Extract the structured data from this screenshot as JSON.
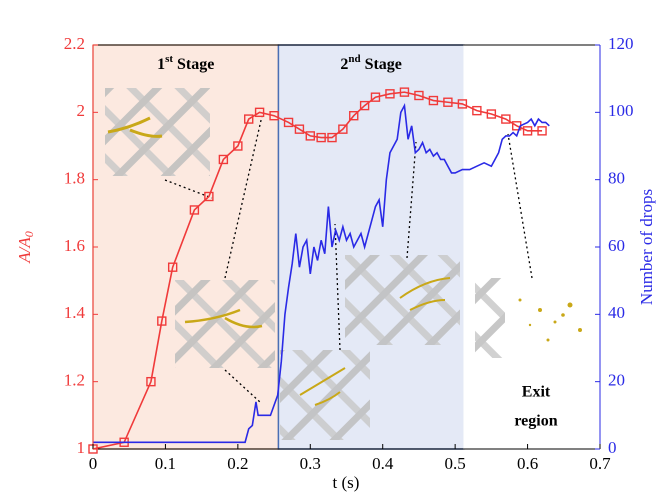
{
  "chart_data": {
    "type": "line",
    "xlabel": "t (s)",
    "ylabel": "A/A",
    "ylabel_sub": "0",
    "y2label": "Number of drops",
    "xlim": [
      0,
      0.7
    ],
    "xticks": [
      0,
      0.1,
      0.2,
      0.3,
      0.4,
      0.5,
      0.6,
      0.7
    ],
    "ylim": [
      1,
      2.2
    ],
    "yticks": [
      1,
      1.2,
      1.4,
      1.6,
      1.8,
      2,
      2.2
    ],
    "y2lim": [
      0,
      120
    ],
    "y2ticks": [
      0,
      20,
      40,
      60,
      80,
      100,
      120
    ],
    "regions": [
      {
        "start": 0,
        "end": 0.256,
        "color": "#fce9e0",
        "edge": "#e8b79a",
        "label": [
          "1",
          "st",
          " Stage"
        ]
      },
      {
        "start": 0.256,
        "end": 0.512,
        "color": "#e4e9f6",
        "edge": "#4a6fb5",
        "label": [
          "2",
          "nd",
          " Stage"
        ]
      },
      {
        "start": 0.512,
        "end": 0.7,
        "color": "#ffffff",
        "edge": "#ffffff",
        "label": [
          "Exit",
          "region"
        ]
      }
    ],
    "series": [
      {
        "color": "#f03a3a",
        "marker": "square",
        "x": [
          0,
          0.043,
          0.08,
          0.095,
          0.11,
          0.14,
          0.16,
          0.18,
          0.2,
          0.215,
          0.23,
          0.25,
          0.27,
          0.285,
          0.3,
          0.315,
          0.33,
          0.345,
          0.36,
          0.375,
          0.39,
          0.41,
          0.43,
          0.45,
          0.47,
          0.49,
          0.51,
          0.53,
          0.55,
          0.57,
          0.585,
          0.6,
          0.62
        ],
        "values": [
          1.0,
          1.02,
          1.2,
          1.38,
          1.54,
          1.71,
          1.75,
          1.86,
          1.9,
          1.98,
          2.0,
          1.99,
          1.97,
          1.95,
          1.93,
          1.925,
          1.925,
          1.95,
          1.99,
          2.02,
          2.045,
          2.055,
          2.06,
          2.05,
          2.035,
          2.03,
          2.025,
          2.005,
          1.995,
          1.98,
          1.96,
          1.945,
          1.945
        ]
      },
      {
        "color": "#2a2ae6",
        "axis": "y2",
        "x": [
          0,
          0.1,
          0.2,
          0.21,
          0.215,
          0.22,
          0.225,
          0.228,
          0.235,
          0.245,
          0.255,
          0.26,
          0.265,
          0.27,
          0.275,
          0.28,
          0.285,
          0.29,
          0.295,
          0.3,
          0.305,
          0.31,
          0.315,
          0.32,
          0.325,
          0.33,
          0.335,
          0.34,
          0.345,
          0.35,
          0.355,
          0.36,
          0.365,
          0.37,
          0.375,
          0.38,
          0.385,
          0.39,
          0.395,
          0.4,
          0.405,
          0.41,
          0.415,
          0.42,
          0.425,
          0.43,
          0.435,
          0.44,
          0.445,
          0.45,
          0.455,
          0.46,
          0.465,
          0.47,
          0.475,
          0.48,
          0.485,
          0.49,
          0.495,
          0.5,
          0.51,
          0.52,
          0.53,
          0.54,
          0.55,
          0.555,
          0.56,
          0.565,
          0.57,
          0.575,
          0.58,
          0.585,
          0.59,
          0.6,
          0.605,
          0.61,
          0.615,
          0.62,
          0.625,
          0.63
        ],
        "values": [
          2,
          2,
          2,
          2,
          6,
          7,
          14,
          10,
          10,
          10,
          16,
          26,
          40,
          48,
          55,
          64,
          54,
          60,
          62,
          52,
          60,
          56,
          62,
          58,
          72,
          60,
          65,
          62,
          66,
          62,
          64,
          60,
          62,
          64,
          60,
          64,
          68,
          72,
          74,
          66,
          80,
          88,
          90,
          92,
          100,
          102,
          92,
          96,
          88,
          89,
          91,
          88,
          89,
          87,
          88,
          86,
          86,
          84,
          82,
          82,
          83,
          83,
          84,
          85,
          84,
          86,
          88,
          92,
          93,
          93,
          94,
          93,
          96,
          97,
          98,
          96,
          98,
          97,
          97,
          96
        ]
      }
    ]
  }
}
